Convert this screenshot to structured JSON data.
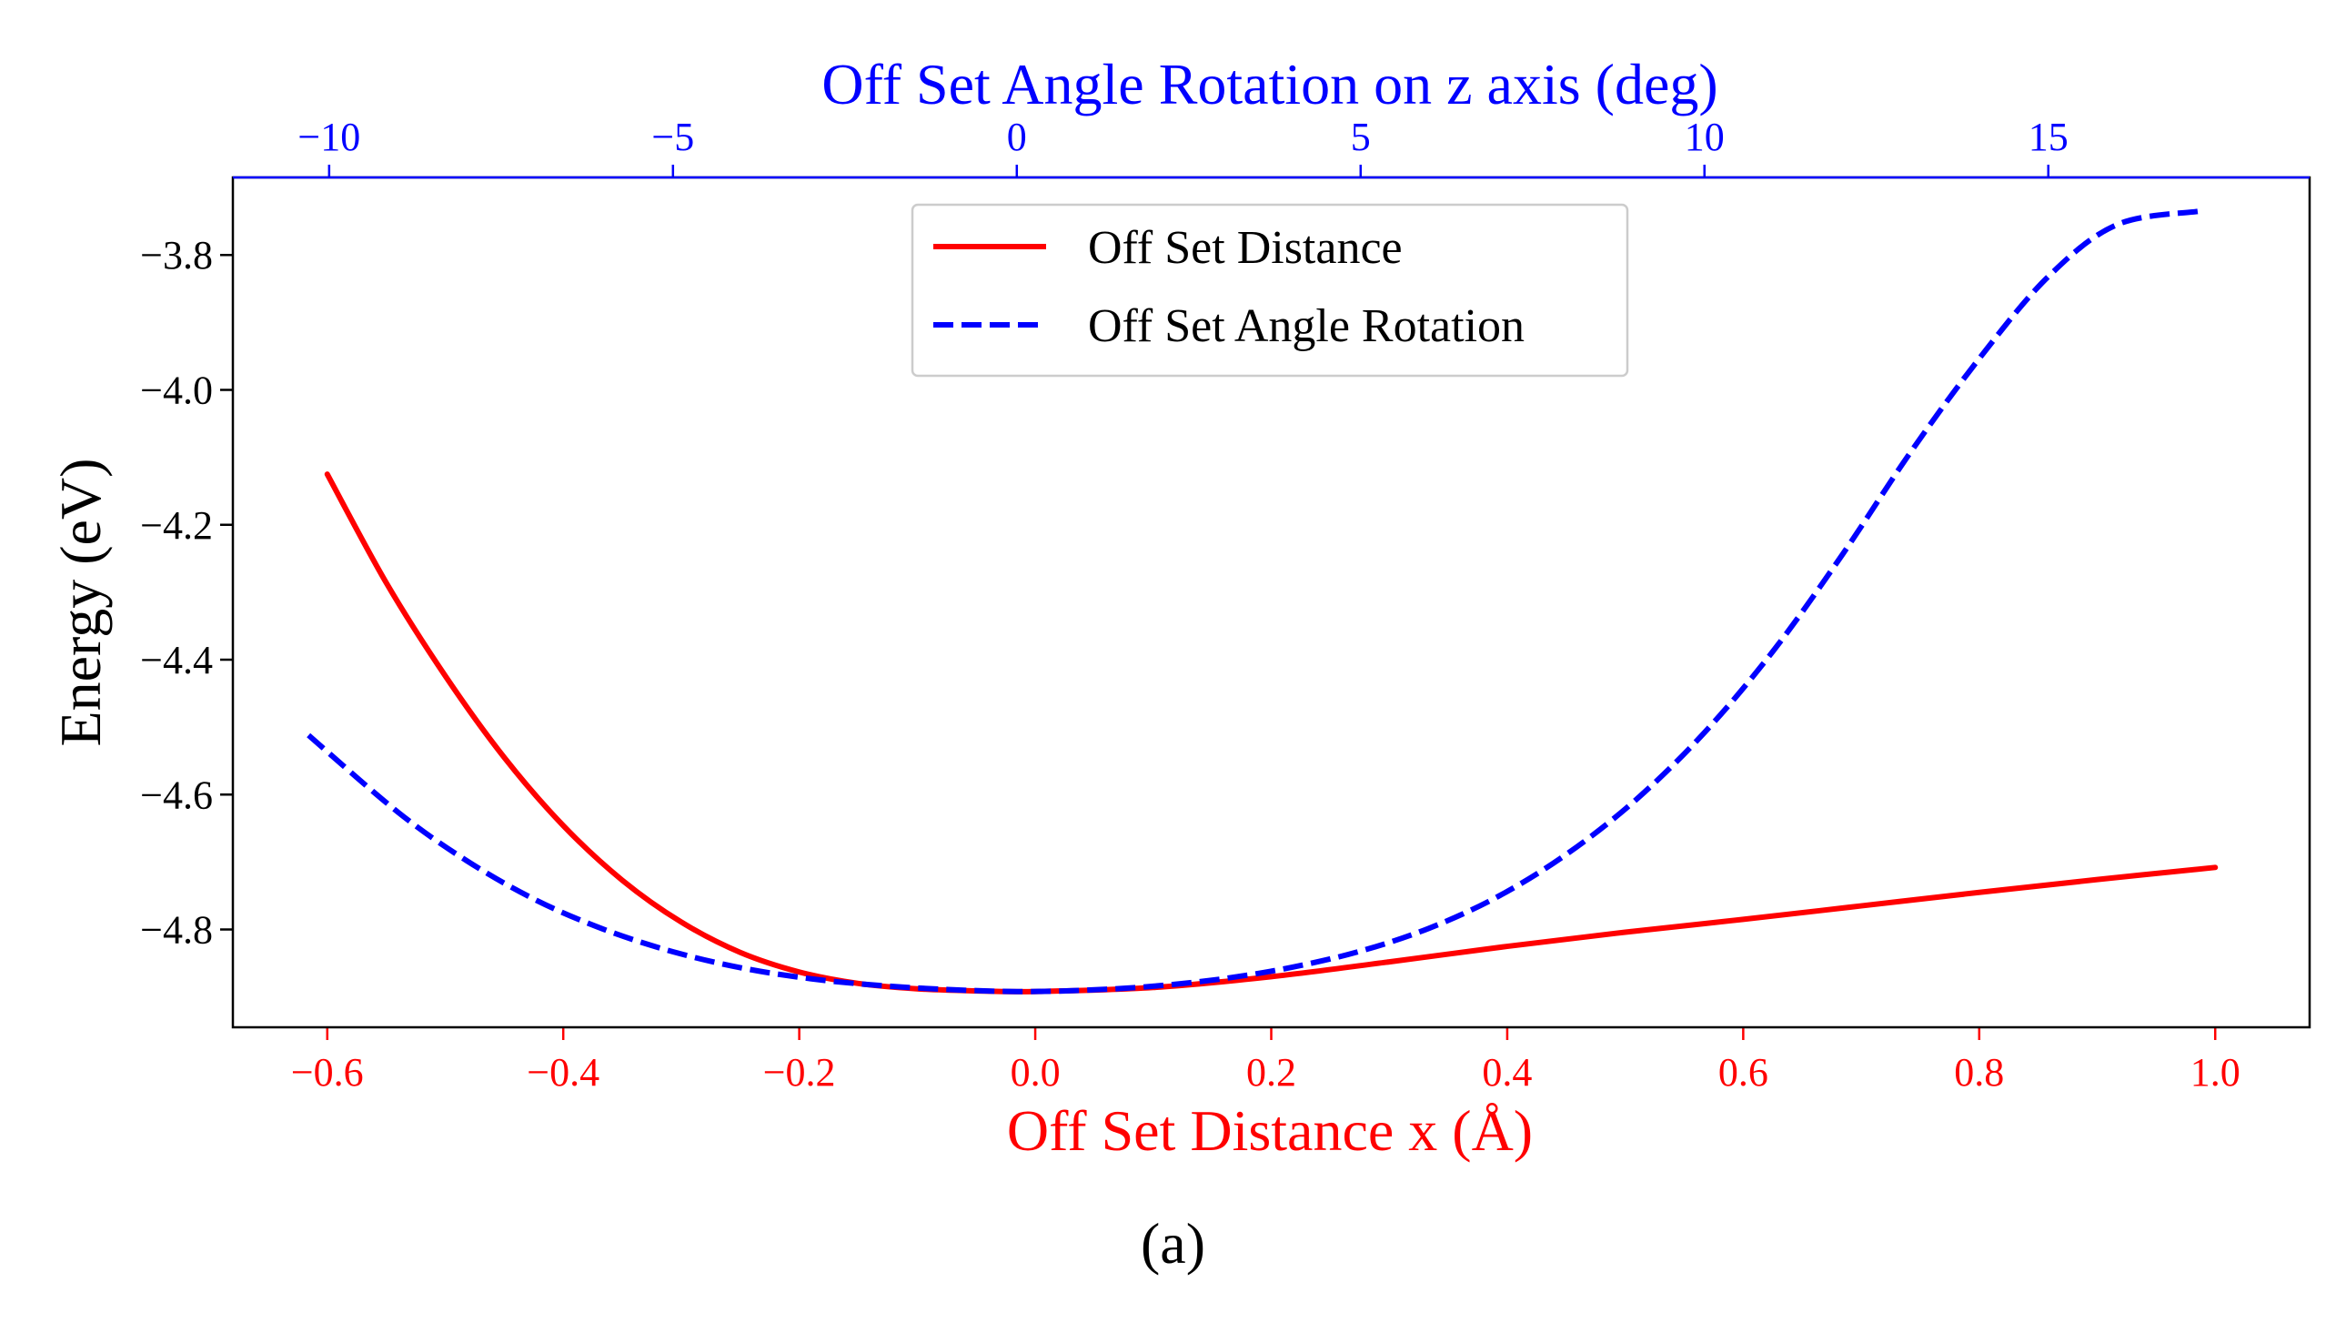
{
  "chart_data": {
    "type": "line",
    "title": "",
    "bottom_axis": {
      "label": "Off Set Distance x (Å)",
      "color": "#ff0000",
      "range": [
        -0.68,
        1.08
      ],
      "ticks": [
        -0.6,
        -0.4,
        -0.2,
        0.0,
        0.2,
        0.4,
        0.6,
        0.8,
        1.0
      ],
      "tick_labels": [
        "−0.6",
        "−0.4",
        "−0.2",
        "0.0",
        "0.2",
        "0.4",
        "0.6",
        "0.8",
        "1.0"
      ]
    },
    "top_axis": {
      "label": "Off Set Angle Rotation on z axis (deg)",
      "color": "#0000ff",
      "range": [
        -11.4,
        18.8
      ],
      "ticks": [
        -10,
        -5,
        0,
        5,
        10,
        15
      ],
      "tick_labels": [
        "−10",
        "−5",
        "0",
        "5",
        "10",
        "15"
      ]
    },
    "left_axis": {
      "label": "Energy (eV)",
      "color": "#000000",
      "range": [
        -4.945,
        -3.685
      ],
      "ticks": [
        -4.8,
        -4.6,
        -4.4,
        -4.2,
        -4.0,
        -3.8
      ],
      "tick_labels": [
        "−4.8",
        "−4.6",
        "−4.4",
        "−4.2",
        "−4.0",
        "−3.8"
      ]
    },
    "grid": false,
    "legend": {
      "placement": "upper-center",
      "entries": [
        "Off Set Distance",
        "Off Set Angle Rotation"
      ]
    },
    "series": [
      {
        "name": "Off Set Distance",
        "axis": "bottom",
        "color": "#ff0000",
        "style": "solid",
        "x": [
          -0.6,
          -0.55,
          -0.5,
          -0.45,
          -0.4,
          -0.35,
          -0.3,
          -0.25,
          -0.2,
          -0.15,
          -0.1,
          -0.05,
          0.0,
          0.1,
          0.2,
          0.3,
          0.4,
          0.5,
          0.6,
          0.7,
          0.8,
          0.9,
          1.0
        ],
        "y": [
          -4.125,
          -4.286,
          -4.424,
          -4.545,
          -4.646,
          -4.727,
          -4.789,
          -4.834,
          -4.863,
          -4.88,
          -4.888,
          -4.891,
          -4.892,
          -4.886,
          -4.87,
          -4.848,
          -4.825,
          -4.804,
          -4.785,
          -4.765,
          -4.745,
          -4.726,
          -4.708
        ]
      },
      {
        "name": "Off Set Angle Rotation",
        "axis": "top",
        "color": "#0000ff",
        "style": "dashed",
        "x": [
          -10.3,
          -9,
          -8,
          -7,
          -6,
          -5,
          -4,
          -3,
          -2,
          -1,
          0,
          1,
          2,
          3,
          4,
          5,
          6,
          7,
          8,
          9,
          10,
          11,
          12,
          13,
          14,
          15,
          16,
          17.2
        ],
        "y": [
          -4.512,
          -4.626,
          -4.698,
          -4.756,
          -4.8,
          -4.833,
          -4.857,
          -4.873,
          -4.883,
          -4.889,
          -4.892,
          -4.89,
          -4.884,
          -4.873,
          -4.856,
          -4.832,
          -4.798,
          -4.751,
          -4.688,
          -4.608,
          -4.508,
          -4.387,
          -4.245,
          -4.092,
          -3.953,
          -3.832,
          -3.755,
          -3.735
        ]
      }
    ]
  },
  "caption": {
    "label": "(a)"
  }
}
